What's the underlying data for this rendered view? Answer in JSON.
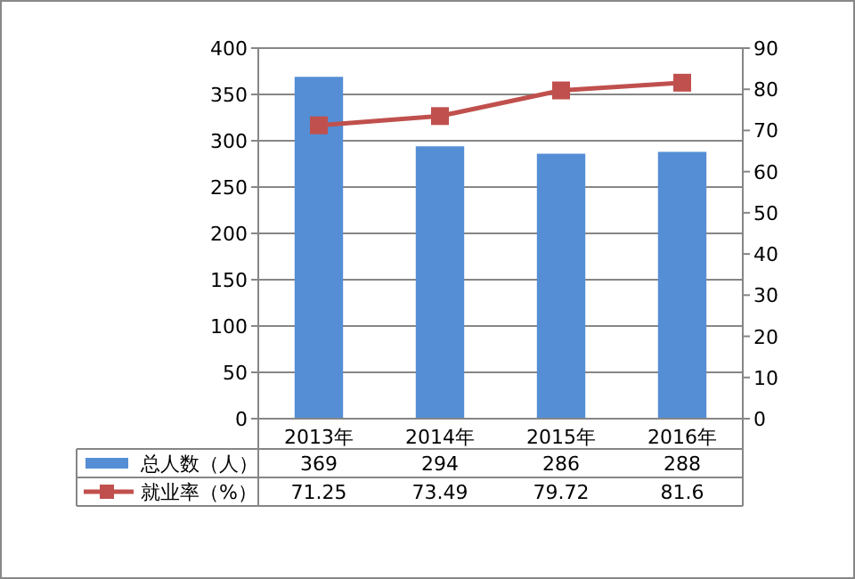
{
  "chart_data": {
    "type": "bar",
    "categories": [
      "2013年",
      "2014年",
      "2015年",
      "2016年"
    ],
    "series": [
      {
        "name": "总人数（人）",
        "color": "#558ed5",
        "values": [
          369,
          294,
          286,
          288
        ]
      },
      {
        "name": "就业率（%）",
        "type": "line",
        "axis": "y2",
        "color": "#c0504d",
        "marker": "square",
        "values": [
          71.25,
          73.49,
          79.72,
          81.6
        ]
      }
    ],
    "ylim": [
      0,
      400
    ],
    "yticks": [
      0,
      50,
      100,
      150,
      200,
      250,
      300,
      350,
      400
    ],
    "y2lim": [
      0,
      90
    ],
    "y2ticks": [
      0,
      10,
      20,
      30,
      40,
      50,
      60,
      70,
      80,
      90
    ],
    "grid": "y",
    "data_labels": true,
    "legend": "bottom"
  }
}
